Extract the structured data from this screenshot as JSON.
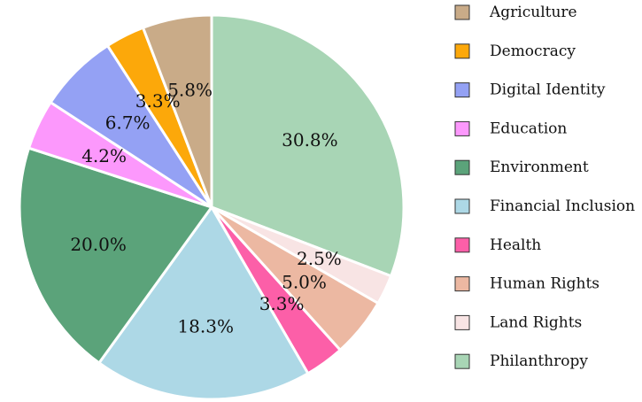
{
  "chart_data": {
    "type": "pie",
    "title": "",
    "legend_position": "right",
    "start_angle_deg": 0,
    "direction": "clockwise",
    "slices": [
      {
        "label": "Philanthropy",
        "value": 30.8,
        "text": "30.8%",
        "color": "#a8d5b5"
      },
      {
        "label": "Land Rights",
        "value": 2.5,
        "text": "2.5%",
        "color": "#f8e4e4"
      },
      {
        "label": "Human Rights",
        "value": 5.0,
        "text": "5.0%",
        "color": "#ecb8a2"
      },
      {
        "label": "Health",
        "value": 3.3,
        "text": "3.3%",
        "color": "#fc5fa8"
      },
      {
        "label": "Financial Inclusion",
        "value": 18.3,
        "text": "18.3%",
        "color": "#add8e6"
      },
      {
        "label": "Environment",
        "value": 20.0,
        "text": "20.0%",
        "color": "#5ba37a"
      },
      {
        "label": "Education",
        "value": 4.2,
        "text": "4.2%",
        "color": "#fc98fc"
      },
      {
        "label": "Digital Identity",
        "value": 6.7,
        "text": "6.7%",
        "color": "#94a1f4"
      },
      {
        "label": "Democracy",
        "value": 3.3,
        "text": "3.3%",
        "color": "#fca80a"
      },
      {
        "label": "Agriculture",
        "value": 5.8,
        "text": "5.8%",
        "color": "#c9ab88"
      }
    ],
    "legend": [
      {
        "label": "Agriculture",
        "color": "#c9ab88"
      },
      {
        "label": "Democracy",
        "color": "#fca80a"
      },
      {
        "label": "Digital Identity",
        "color": "#94a1f4"
      },
      {
        "label": "Education",
        "color": "#fc98fc"
      },
      {
        "label": "Environment",
        "color": "#5ba37a"
      },
      {
        "label": "Financial Inclusion",
        "color": "#add8e6"
      },
      {
        "label": "Health",
        "color": "#fc5fa8"
      },
      {
        "label": "Human Rights",
        "color": "#ecb8a2"
      },
      {
        "label": "Land Rights",
        "color": "#f8e4e4"
      },
      {
        "label": "Philanthropy",
        "color": "#a8d5b5"
      }
    ]
  }
}
